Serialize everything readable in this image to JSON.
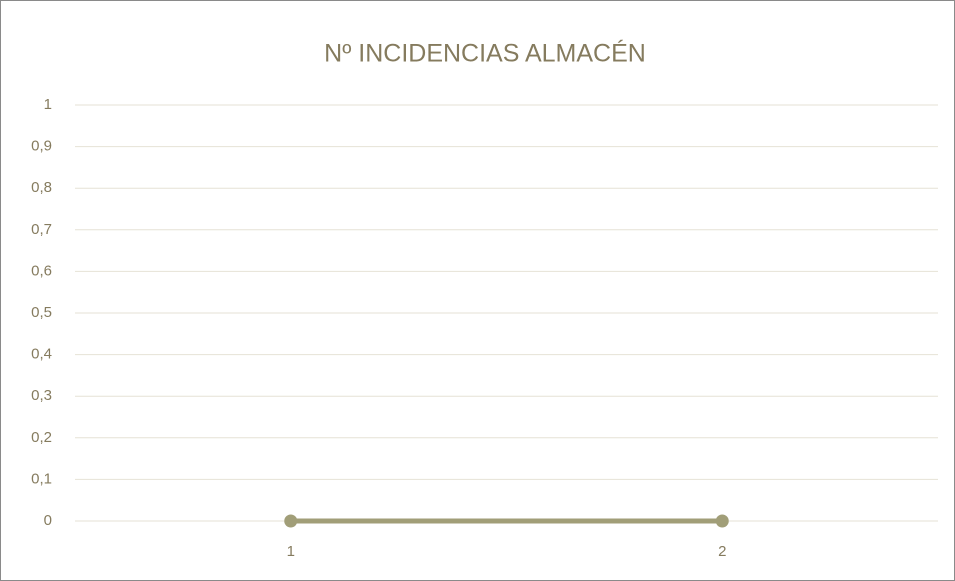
{
  "chart_data": {
    "type": "line",
    "title": "Nº INCIDENCIAS ALMACÉN",
    "categories": [
      "1",
      "2"
    ],
    "values": [
      0,
      0
    ],
    "color": "#a19e78",
    "ylim": [
      0,
      1
    ],
    "yticks": [
      0,
      {
        "value": 0.1,
        "label": "0,1"
      },
      {
        "value": 0.2,
        "label": "0,2"
      },
      {
        "value": 0.3,
        "label": "0,3"
      },
      {
        "value": 0.4,
        "label": "0,4"
      },
      {
        "value": 0.5,
        "label": "0,5"
      },
      {
        "value": 0.6,
        "label": "0,6"
      },
      {
        "value": 0.7,
        "label": "0,7"
      },
      {
        "value": 0.8,
        "label": "0,8"
      },
      {
        "value": 0.9,
        "label": "0,9"
      },
      1
    ],
    "grid": true
  }
}
